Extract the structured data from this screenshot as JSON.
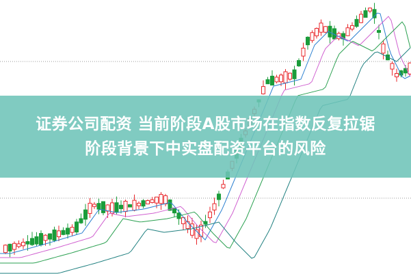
{
  "banner": {
    "title_line1": "证券公司配资 当前阶段A股市场在指数反复拉锯",
    "title_line2": "阶段背景下中实盘配资平台的风险",
    "color": "#6ec4b8"
  },
  "colors": {
    "up": "#e8262a",
    "down": "#1a9c3a"
  }
}
